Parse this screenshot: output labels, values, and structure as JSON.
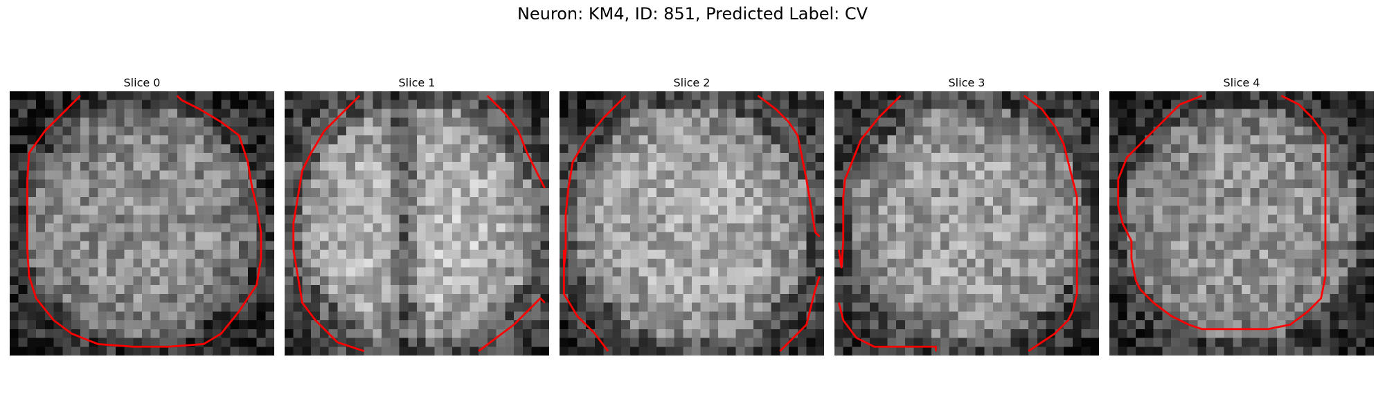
{
  "figure": {
    "title": "Neuron: KM4, ID: 851, Predicted Label: CV",
    "contour_color": "#ff0000"
  },
  "panels": [
    {
      "title": "Slice 0",
      "seed": 11,
      "brightness": 0.55,
      "lobes": "single"
    },
    {
      "title": "Slice 1",
      "seed": 23,
      "brightness": 0.72,
      "lobes": "double"
    },
    {
      "title": "Slice 2",
      "seed": 37,
      "brightness": 0.66,
      "lobes": "single"
    },
    {
      "title": "Slice 3",
      "seed": 41,
      "brightness": 0.62,
      "lobes": "single"
    },
    {
      "title": "Slice 4",
      "seed": 53,
      "brightness": 0.58,
      "lobes": "single"
    }
  ]
}
